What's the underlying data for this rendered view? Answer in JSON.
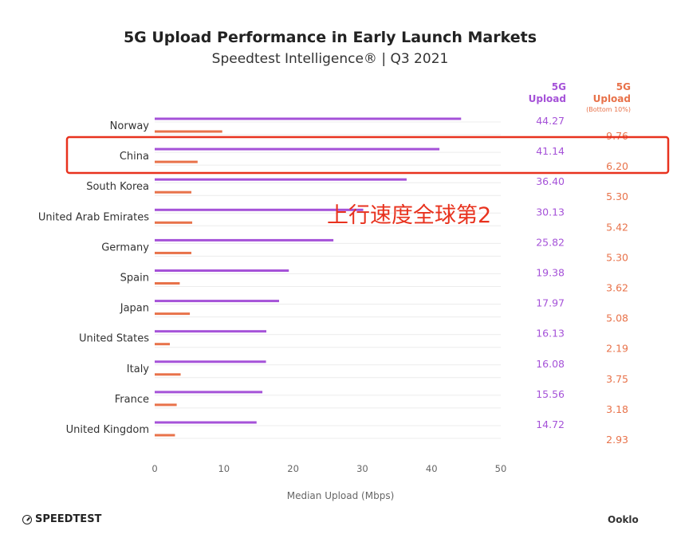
{
  "chart_data": {
    "type": "bar",
    "title": "5G Upload Performance in Early Launch Markets",
    "subtitle": "Speedtest Intelligence® | Q3 2021",
    "xlabel": "Median Upload (Mbps)",
    "xlim": [
      0,
      50
    ],
    "xticks": [
      "0",
      "10",
      "20",
      "30",
      "40",
      "50"
    ],
    "categories": [
      "Norway",
      "China",
      "South Korea",
      "United Arab Emirates",
      "Germany",
      "Spain",
      "Japan",
      "United States",
      "Italy",
      "France",
      "United Kingdom"
    ],
    "series": [
      {
        "name": "5G Upload",
        "color": "#a552d8",
        "values": [
          44.27,
          41.14,
          36.4,
          30.13,
          25.82,
          19.38,
          17.97,
          16.13,
          16.08,
          15.56,
          14.72
        ],
        "labels": [
          "44.27",
          "41.14",
          "36.40",
          "30.13",
          "25.82",
          "19.38",
          "17.97",
          "16.13",
          "16.08",
          "15.56",
          "14.72"
        ]
      },
      {
        "name": "5G Upload (Bottom 10%)",
        "color": "#e8724a",
        "values": [
          9.76,
          6.2,
          5.3,
          5.42,
          5.3,
          3.62,
          5.08,
          2.19,
          3.75,
          3.18,
          2.93
        ],
        "labels": [
          "9.76",
          "6.20",
          "5.30",
          "5.42",
          "5.30",
          "3.62",
          "5.08",
          "2.19",
          "3.75",
          "3.18",
          "2.93"
        ]
      }
    ],
    "column_headers": {
      "median": [
        "5G",
        "Upload"
      ],
      "bottom": [
        "5G",
        "Upload",
        "(Bottom 10%)"
      ]
    },
    "annotation": "上行速度全球第2",
    "highlight_category": "China",
    "highlight_color": "#e8321e",
    "grid": true
  },
  "branding": {
    "left": "SPEEDTEST",
    "right": "Ooklo"
  }
}
